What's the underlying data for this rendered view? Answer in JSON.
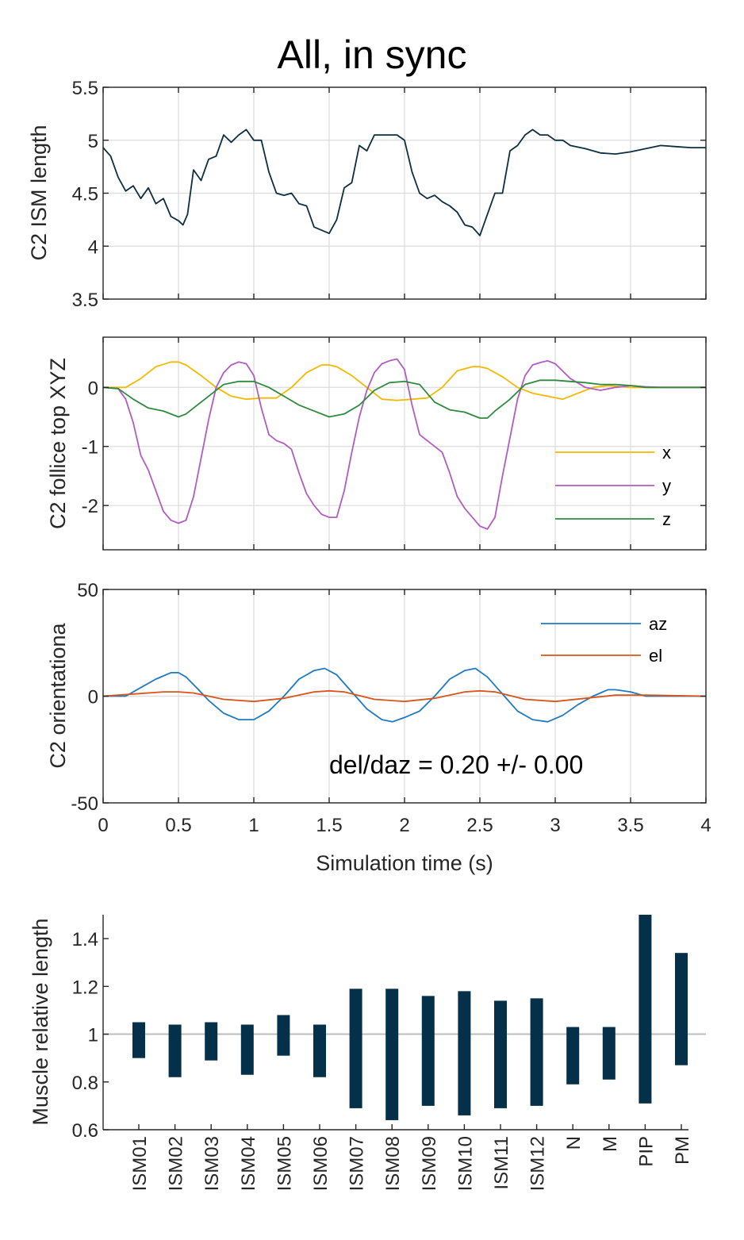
{
  "figure": {
    "title": "All, in sync"
  },
  "colors": {
    "dark": "#0d2e40",
    "x": "#f5b800",
    "y": "#b05cc0",
    "z": "#2e8b3e",
    "az": "#1f7ac4",
    "el": "#d9541a",
    "bar": "#05304a",
    "refline": "#bdbdbd"
  },
  "chart_data": [
    {
      "id": "ism_length",
      "type": "line",
      "ylabel": "C2 ISM length",
      "xlim": [
        0,
        4
      ],
      "ylim": [
        3.5,
        5.5
      ],
      "xticks": [
        0,
        0.5,
        1,
        1.5,
        2,
        2.5,
        3,
        3.5,
        4
      ],
      "yticks": [
        3.5,
        4,
        4.5,
        5,
        5.5
      ],
      "ytick_labels": [
        "3.5",
        "4",
        "4.5",
        "5",
        "5.5"
      ],
      "grid": true,
      "series": [
        {
          "color_key": "dark",
          "x": [
            0,
            0.05,
            0.1,
            0.15,
            0.2,
            0.25,
            0.3,
            0.35,
            0.4,
            0.45,
            0.5,
            0.53,
            0.56,
            0.6,
            0.65,
            0.7,
            0.75,
            0.8,
            0.85,
            0.9,
            0.95,
            1.0,
            1.05,
            1.1,
            1.15,
            1.2,
            1.25,
            1.3,
            1.35,
            1.4,
            1.45,
            1.5,
            1.55,
            1.6,
            1.65,
            1.7,
            1.75,
            1.8,
            1.85,
            1.9,
            1.95,
            2.0,
            2.05,
            2.1,
            2.15,
            2.2,
            2.25,
            2.3,
            2.35,
            2.4,
            2.45,
            2.5,
            2.55,
            2.6,
            2.65,
            2.7,
            2.75,
            2.8,
            2.85,
            2.9,
            2.95,
            3.0,
            3.05,
            3.1,
            3.2,
            3.3,
            3.4,
            3.5,
            3.6,
            3.7,
            3.8,
            3.9,
            4.0
          ],
          "y": [
            4.93,
            4.85,
            4.65,
            4.52,
            4.57,
            4.45,
            4.55,
            4.4,
            4.45,
            4.28,
            4.24,
            4.2,
            4.3,
            4.72,
            4.62,
            4.82,
            4.85,
            5.05,
            4.98,
            5.05,
            5.1,
            5.0,
            5.0,
            4.7,
            4.5,
            4.48,
            4.5,
            4.4,
            4.38,
            4.18,
            4.15,
            4.12,
            4.25,
            4.55,
            4.6,
            4.95,
            4.9,
            5.05,
            5.05,
            5.05,
            5.05,
            5.0,
            4.7,
            4.5,
            4.45,
            4.48,
            4.42,
            4.38,
            4.32,
            4.2,
            4.18,
            4.1,
            4.3,
            4.5,
            4.5,
            4.9,
            4.95,
            5.05,
            5.1,
            5.05,
            5.05,
            5.0,
            5.0,
            4.95,
            4.92,
            4.88,
            4.87,
            4.89,
            4.92,
            4.95,
            4.94,
            4.93,
            4.93
          ]
        }
      ]
    },
    {
      "id": "follicle_xyz",
      "type": "line",
      "ylabel": "C2 follice top XYZ",
      "xlim": [
        0,
        4
      ],
      "ylim": [
        -2.75,
        0.85
      ],
      "xticks": [
        0,
        0.5,
        1,
        1.5,
        2,
        2.5,
        3,
        3.5,
        4
      ],
      "yticks": [
        -2,
        -1,
        0
      ],
      "ytick_labels": [
        "-2",
        "-1",
        "0"
      ],
      "grid": true,
      "legend": "right",
      "series": [
        {
          "name": "x",
          "color_key": "x",
          "x": [
            0,
            0.15,
            0.25,
            0.35,
            0.45,
            0.5,
            0.55,
            0.65,
            0.75,
            0.85,
            0.95,
            1.05,
            1.15,
            1.25,
            1.35,
            1.45,
            1.5,
            1.55,
            1.65,
            1.75,
            1.85,
            1.95,
            2.05,
            2.15,
            2.25,
            2.35,
            2.45,
            2.5,
            2.55,
            2.65,
            2.75,
            2.85,
            2.95,
            3.05,
            3.15,
            3.25,
            3.35,
            3.5,
            3.7,
            4.0
          ],
          "y": [
            0,
            0,
            0.15,
            0.35,
            0.43,
            0.43,
            0.38,
            0.2,
            0.0,
            -0.15,
            -0.2,
            -0.18,
            -0.18,
            0.0,
            0.25,
            0.38,
            0.38,
            0.35,
            0.2,
            0.0,
            -0.2,
            -0.22,
            -0.2,
            -0.18,
            0.0,
            0.28,
            0.35,
            0.35,
            0.32,
            0.18,
            0.0,
            -0.1,
            -0.15,
            -0.2,
            -0.1,
            0.0,
            0.03,
            0.0,
            0.0,
            0.0
          ]
        },
        {
          "name": "y",
          "color_key": "y",
          "x": [
            0,
            0.1,
            0.15,
            0.2,
            0.25,
            0.3,
            0.35,
            0.4,
            0.45,
            0.5,
            0.55,
            0.6,
            0.65,
            0.7,
            0.75,
            0.8,
            0.85,
            0.9,
            0.95,
            1.0,
            1.05,
            1.1,
            1.15,
            1.2,
            1.25,
            1.3,
            1.35,
            1.4,
            1.45,
            1.5,
            1.55,
            1.6,
            1.65,
            1.7,
            1.75,
            1.8,
            1.85,
            1.9,
            1.95,
            2.0,
            2.05,
            2.1,
            2.15,
            2.2,
            2.25,
            2.3,
            2.35,
            2.4,
            2.45,
            2.5,
            2.55,
            2.6,
            2.65,
            2.7,
            2.75,
            2.8,
            2.85,
            2.9,
            2.95,
            3.0,
            3.1,
            3.2,
            3.3,
            3.4,
            3.5,
            3.6,
            3.7,
            3.8,
            4.0
          ],
          "y": [
            0,
            -0.02,
            -0.2,
            -0.6,
            -1.15,
            -1.4,
            -1.75,
            -2.1,
            -2.25,
            -2.3,
            -2.25,
            -1.85,
            -1.2,
            -0.55,
            0.0,
            0.25,
            0.38,
            0.43,
            0.4,
            0.2,
            -0.35,
            -0.8,
            -0.9,
            -0.95,
            -1.05,
            -1.45,
            -1.8,
            -2.0,
            -2.15,
            -2.2,
            -2.2,
            -1.75,
            -1.1,
            -0.5,
            -0.05,
            0.25,
            0.4,
            0.45,
            0.48,
            0.3,
            -0.3,
            -0.8,
            -0.9,
            -1.0,
            -1.1,
            -1.45,
            -1.85,
            -2.05,
            -2.2,
            -2.35,
            -2.4,
            -2.2,
            -1.5,
            -0.85,
            -0.2,
            0.2,
            0.38,
            0.42,
            0.45,
            0.4,
            0.15,
            0.0,
            -0.05,
            0.0,
            0.03,
            0.01,
            0.0,
            0.0,
            0.0
          ]
        },
        {
          "name": "z",
          "color_key": "z",
          "x": [
            0,
            0.1,
            0.2,
            0.3,
            0.4,
            0.5,
            0.55,
            0.6,
            0.7,
            0.8,
            0.9,
            1.0,
            1.1,
            1.2,
            1.3,
            1.4,
            1.5,
            1.6,
            1.7,
            1.8,
            1.9,
            2.0,
            2.1,
            2.2,
            2.3,
            2.4,
            2.5,
            2.55,
            2.6,
            2.7,
            2.8,
            2.9,
            3.0,
            3.1,
            3.2,
            3.3,
            3.4,
            3.5,
            3.6,
            4.0
          ],
          "y": [
            0,
            -0.02,
            -0.2,
            -0.35,
            -0.4,
            -0.5,
            -0.45,
            -0.35,
            -0.15,
            0.05,
            0.1,
            0.1,
            0.0,
            -0.15,
            -0.3,
            -0.4,
            -0.5,
            -0.45,
            -0.3,
            -0.05,
            0.08,
            0.1,
            0.05,
            -0.25,
            -0.38,
            -0.42,
            -0.52,
            -0.52,
            -0.4,
            -0.2,
            0.05,
            0.12,
            0.12,
            0.1,
            0.08,
            0.05,
            0.05,
            0.03,
            0.0,
            0.0
          ]
        }
      ]
    },
    {
      "id": "orientation",
      "type": "line",
      "ylabel": "C2 orientationa",
      "xlabel": "Simulation time (s)",
      "xlim": [
        0,
        4
      ],
      "ylim": [
        -50,
        50
      ],
      "xticks": [
        0,
        0.5,
        1,
        1.5,
        2,
        2.5,
        3,
        3.5,
        4
      ],
      "xtick_labels": [
        "0",
        "0.5",
        "1",
        "1.5",
        "2",
        "2.5",
        "3",
        "3.5",
        "4"
      ],
      "yticks": [
        -50,
        0,
        50
      ],
      "ytick_labels": [
        "-50",
        "0",
        "50"
      ],
      "grid": true,
      "legend": "top-right",
      "annotation": "del/daz = 0.20 +/- 0.00",
      "series": [
        {
          "name": "az",
          "color_key": "az",
          "x": [
            0,
            0.15,
            0.25,
            0.35,
            0.45,
            0.5,
            0.55,
            0.62,
            0.7,
            0.8,
            0.9,
            1.0,
            1.1,
            1.2,
            1.3,
            1.4,
            1.47,
            1.55,
            1.65,
            1.75,
            1.85,
            1.92,
            2.0,
            2.1,
            2.2,
            2.3,
            2.4,
            2.47,
            2.55,
            2.65,
            2.75,
            2.85,
            2.95,
            3.05,
            3.15,
            3.25,
            3.35,
            3.4,
            3.5,
            3.6,
            3.7,
            4.0
          ],
          "y": [
            0,
            0,
            4,
            8,
            11,
            11,
            9,
            4,
            -2,
            -8,
            -11,
            -11,
            -7,
            0,
            8,
            12,
            13,
            10,
            2,
            -6,
            -11,
            -12,
            -10,
            -7,
            0,
            8,
            12,
            13,
            9,
            1,
            -7,
            -11,
            -12,
            -9,
            -4,
            0,
            3,
            3,
            2,
            0,
            0,
            0
          ]
        },
        {
          "name": "el",
          "color_key": "el",
          "x": [
            0,
            0.2,
            0.4,
            0.5,
            0.6,
            0.8,
            1.0,
            1.2,
            1.4,
            1.5,
            1.6,
            1.8,
            2.0,
            2.2,
            2.4,
            2.5,
            2.6,
            2.8,
            3.0,
            3.2,
            3.4,
            3.6,
            4.0
          ],
          "y": [
            0,
            1,
            2,
            2,
            1.5,
            -1.5,
            -2.5,
            -1,
            2,
            2.5,
            2,
            -1.5,
            -2.5,
            -1,
            2,
            2.5,
            2,
            -1.5,
            -2.5,
            -1,
            0.5,
            0.5,
            0
          ]
        }
      ]
    },
    {
      "id": "muscle_length",
      "type": "bar",
      "ylabel": "Muscle relative length",
      "ylim": [
        0.6,
        1.5
      ],
      "yticks": [
        0.6,
        0.8,
        1,
        1.2,
        1.4
      ],
      "ytick_labels": [
        "0.6",
        "0.8",
        "1",
        "1.2",
        "1.4"
      ],
      "reference_line": 1,
      "categories": [
        "ISM01",
        "ISM02",
        "ISM03",
        "ISM04",
        "ISM05",
        "ISM06",
        "ISM07",
        "ISM08",
        "ISM09",
        "ISM10",
        "ISM11",
        "ISM12",
        "N",
        "M",
        "PIP",
        "PM"
      ],
      "min": [
        0.9,
        0.82,
        0.89,
        0.83,
        0.91,
        0.82,
        0.69,
        0.64,
        0.7,
        0.66,
        0.69,
        0.7,
        0.79,
        0.81,
        0.71,
        0.87
      ],
      "max": [
        1.05,
        1.04,
        1.05,
        1.04,
        1.08,
        1.04,
        1.19,
        1.19,
        1.16,
        1.18,
        1.14,
        1.15,
        1.03,
        1.03,
        1.5,
        1.34
      ]
    }
  ]
}
